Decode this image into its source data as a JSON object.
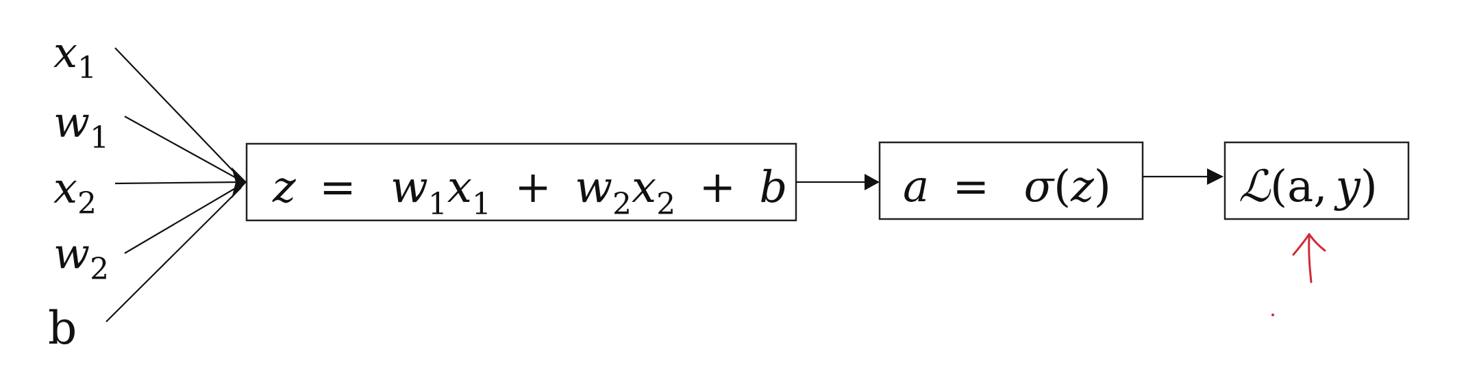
{
  "inputs": [
    {
      "symbol": "x",
      "sub": "1"
    },
    {
      "symbol": "w",
      "sub": "1"
    },
    {
      "symbol": "x",
      "sub": "2"
    },
    {
      "symbol": "w",
      "sub": "2"
    },
    {
      "symbol": "b",
      "sub": ""
    }
  ],
  "node_linear": {
    "lhs": "z",
    "eq": "=",
    "t1_var": "w",
    "t1_sub": "1",
    "t2_var": "x",
    "t2_sub": "1",
    "plus1": "+",
    "t3_var": "w",
    "t3_sub": "2",
    "t4_var": "x",
    "t4_sub": "2",
    "plus2": "+",
    "t5_var": "b"
  },
  "node_activation": {
    "lhs": "a",
    "eq": "=",
    "func": "σ",
    "open": "(",
    "arg": "z",
    "close": ")"
  },
  "node_loss": {
    "func": "ℒ",
    "open": "(",
    "arg1": "a",
    "comma": ",",
    "arg2": "y",
    "close": ")"
  },
  "colors": {
    "ink": "#111111",
    "box_stroke": "#222222",
    "annotation": "#d02a35"
  }
}
